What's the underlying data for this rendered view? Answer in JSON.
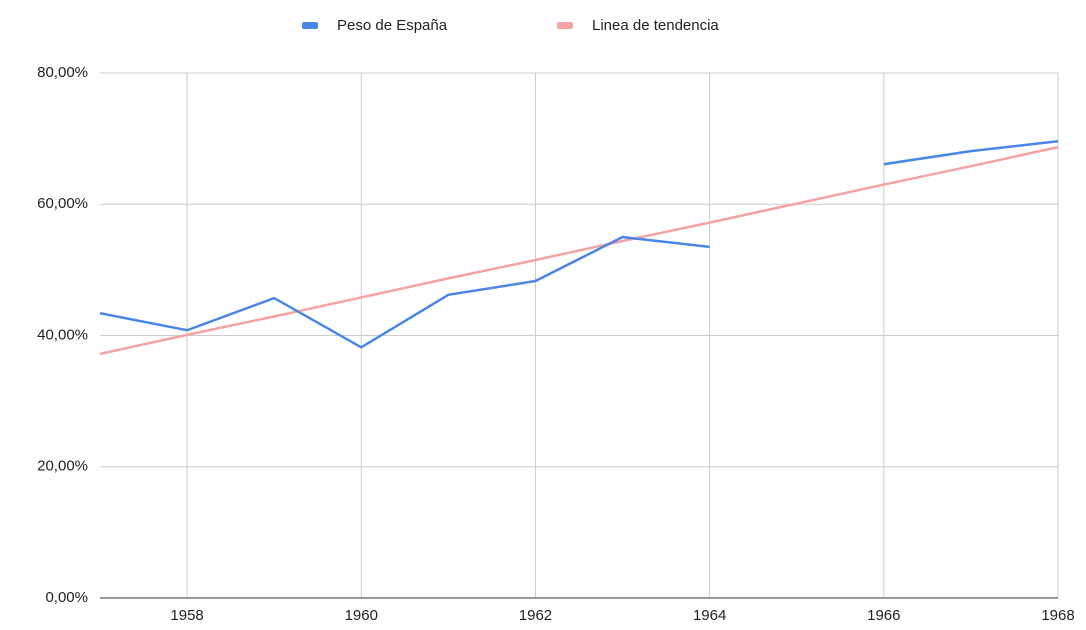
{
  "chart_data": {
    "type": "line",
    "x": [
      1957,
      1958,
      1959,
      1960,
      1961,
      1962,
      1963,
      1964,
      1965,
      1966,
      1967,
      1968
    ],
    "series": [
      {
        "name": "Peso de España",
        "color": "#4a86e8",
        "values": [
          43.4,
          40.8,
          45.7,
          38.2,
          46.2,
          48.3,
          55.0,
          53.5,
          null,
          66.1,
          68.1,
          69.6
        ]
      },
      {
        "name": "Linea de tendencia",
        "color": "#f4a3a3",
        "values": [
          37.2,
          40.1,
          42.9,
          45.8,
          48.7,
          51.5,
          54.4,
          57.2,
          60.1,
          63.0,
          65.8,
          68.7
        ]
      }
    ],
    "xlim": [
      1957,
      1968
    ],
    "xticks": [
      1958,
      1960,
      1962,
      1964,
      1966,
      1968
    ],
    "ylim": [
      0,
      80
    ],
    "yticks": [
      {
        "value": 0,
        "label": "0,00%"
      },
      {
        "value": 20,
        "label": "20,00%"
      },
      {
        "value": 40,
        "label": "40,00%"
      },
      {
        "value": 60,
        "label": "60,00%"
      },
      {
        "value": 80,
        "label": "80,00%"
      }
    ],
    "grid": true,
    "legend": "top"
  }
}
